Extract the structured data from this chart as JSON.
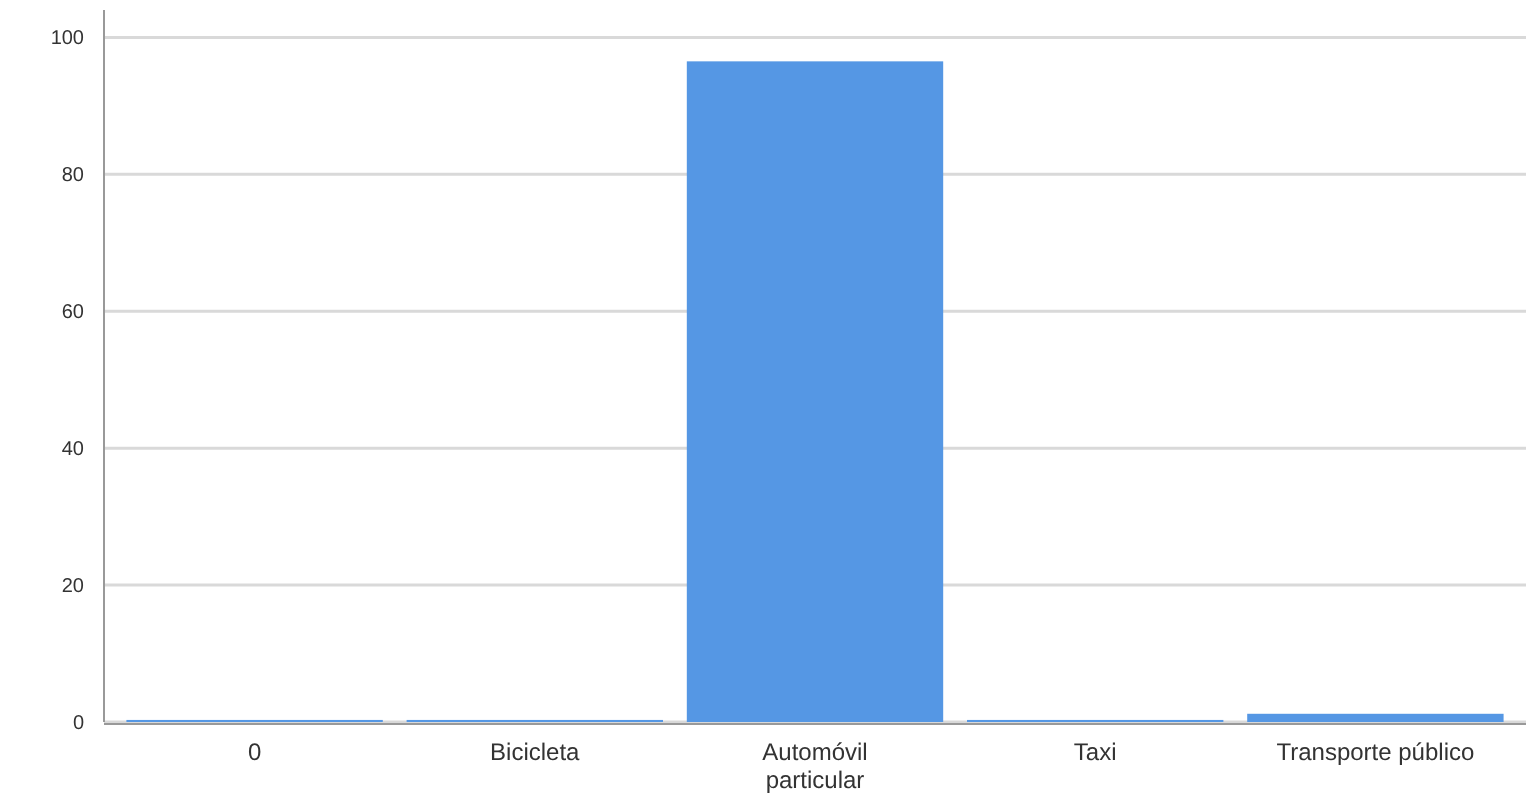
{
  "chart_data": {
    "type": "bar",
    "categories": [
      "0",
      "Bicicleta",
      "Automóvil particular",
      "Taxi",
      "Transporte público"
    ],
    "values": [
      0.3,
      0.3,
      96.5,
      0.3,
      1.2
    ],
    "color": "#5597e4",
    "ylim": [
      0,
      104
    ],
    "yticks": [
      0,
      20,
      40,
      60,
      80,
      100
    ],
    "grid": "y"
  }
}
